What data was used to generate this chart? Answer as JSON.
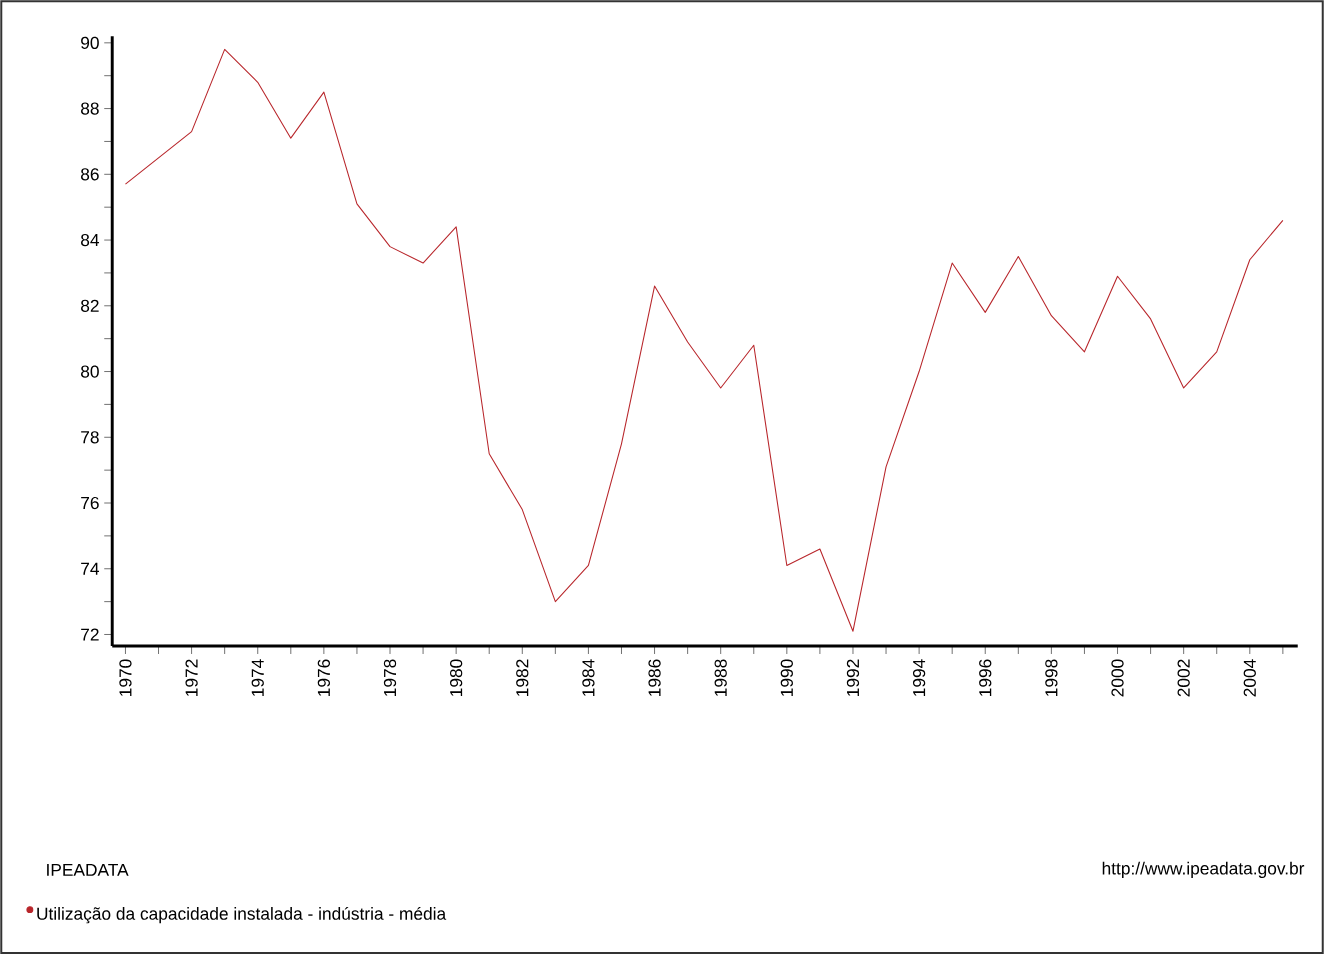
{
  "chart_data": {
    "type": "line",
    "x": [
      1970,
      1971,
      1972,
      1973,
      1974,
      1975,
      1976,
      1977,
      1978,
      1979,
      1980,
      1981,
      1982,
      1983,
      1984,
      1985,
      1986,
      1987,
      1988,
      1989,
      1990,
      1991,
      1992,
      1993,
      1994,
      1995,
      1996,
      1997,
      1998,
      1999,
      2000,
      2001,
      2002,
      2003,
      2004,
      2005
    ],
    "series": [
      {
        "name": "Utilização da capacidade instalada - indústria - média",
        "color": "#b8262b",
        "values": [
          85.7,
          86.5,
          87.3,
          89.8,
          88.8,
          87.1,
          88.5,
          85.1,
          83.8,
          83.3,
          84.4,
          77.5,
          75.8,
          73.0,
          74.1,
          77.8,
          82.6,
          80.9,
          79.5,
          80.8,
          74.1,
          74.6,
          72.1,
          77.1,
          80.0,
          83.3,
          81.8,
          83.5,
          81.7,
          80.6,
          82.9,
          81.6,
          79.5,
          80.6,
          83.4,
          84.6
        ]
      }
    ],
    "xlim": [
      1969.6,
      2005.45
    ],
    "ylim": [
      71.65,
      90.2
    ],
    "xticks": [
      1970,
      {
        "value": 1971,
        "label": null
      },
      1972,
      {
        "value": 1973,
        "label": null
      },
      1974,
      {
        "value": 1975,
        "label": null
      },
      1976,
      {
        "value": 1977,
        "label": null
      },
      1978,
      {
        "value": 1979,
        "label": null
      },
      1980,
      {
        "value": 1981,
        "label": null
      },
      1982,
      {
        "value": 1983,
        "label": null
      },
      1984,
      {
        "value": 1985,
        "label": null
      },
      1986,
      {
        "value": 1987,
        "label": null
      },
      1988,
      {
        "value": 1989,
        "label": null
      },
      1990,
      {
        "value": 1991,
        "label": null
      },
      1992,
      {
        "value": 1993,
        "label": null
      },
      1994,
      {
        "value": 1995,
        "label": null
      },
      1996,
      {
        "value": 1997,
        "label": null
      },
      1998,
      {
        "value": 1999,
        "label": null
      },
      2000,
      {
        "value": 2001,
        "label": null
      },
      2002,
      {
        "value": 2003,
        "label": null
      },
      2004,
      {
        "value": 2005,
        "label": null
      }
    ],
    "yticks": [
      72,
      {
        "value": 73,
        "label": null
      },
      74,
      {
        "value": 75,
        "label": null
      },
      76,
      {
        "value": 77,
        "label": null
      },
      78,
      {
        "value": 79,
        "label": null
      },
      80,
      {
        "value": 81,
        "label": null
      },
      82,
      {
        "value": 83,
        "label": null
      },
      84,
      {
        "value": 85,
        "label": null
      },
      86,
      {
        "value": 87,
        "label": null
      },
      88,
      {
        "value": 89,
        "label": null
      },
      90
    ],
    "legend": "bottom left",
    "grid": false,
    "marker": "none",
    "line_style": "solid",
    "annotations": [
      "IPEADATA",
      "http://www.ipeadata.gov.br"
    ]
  }
}
